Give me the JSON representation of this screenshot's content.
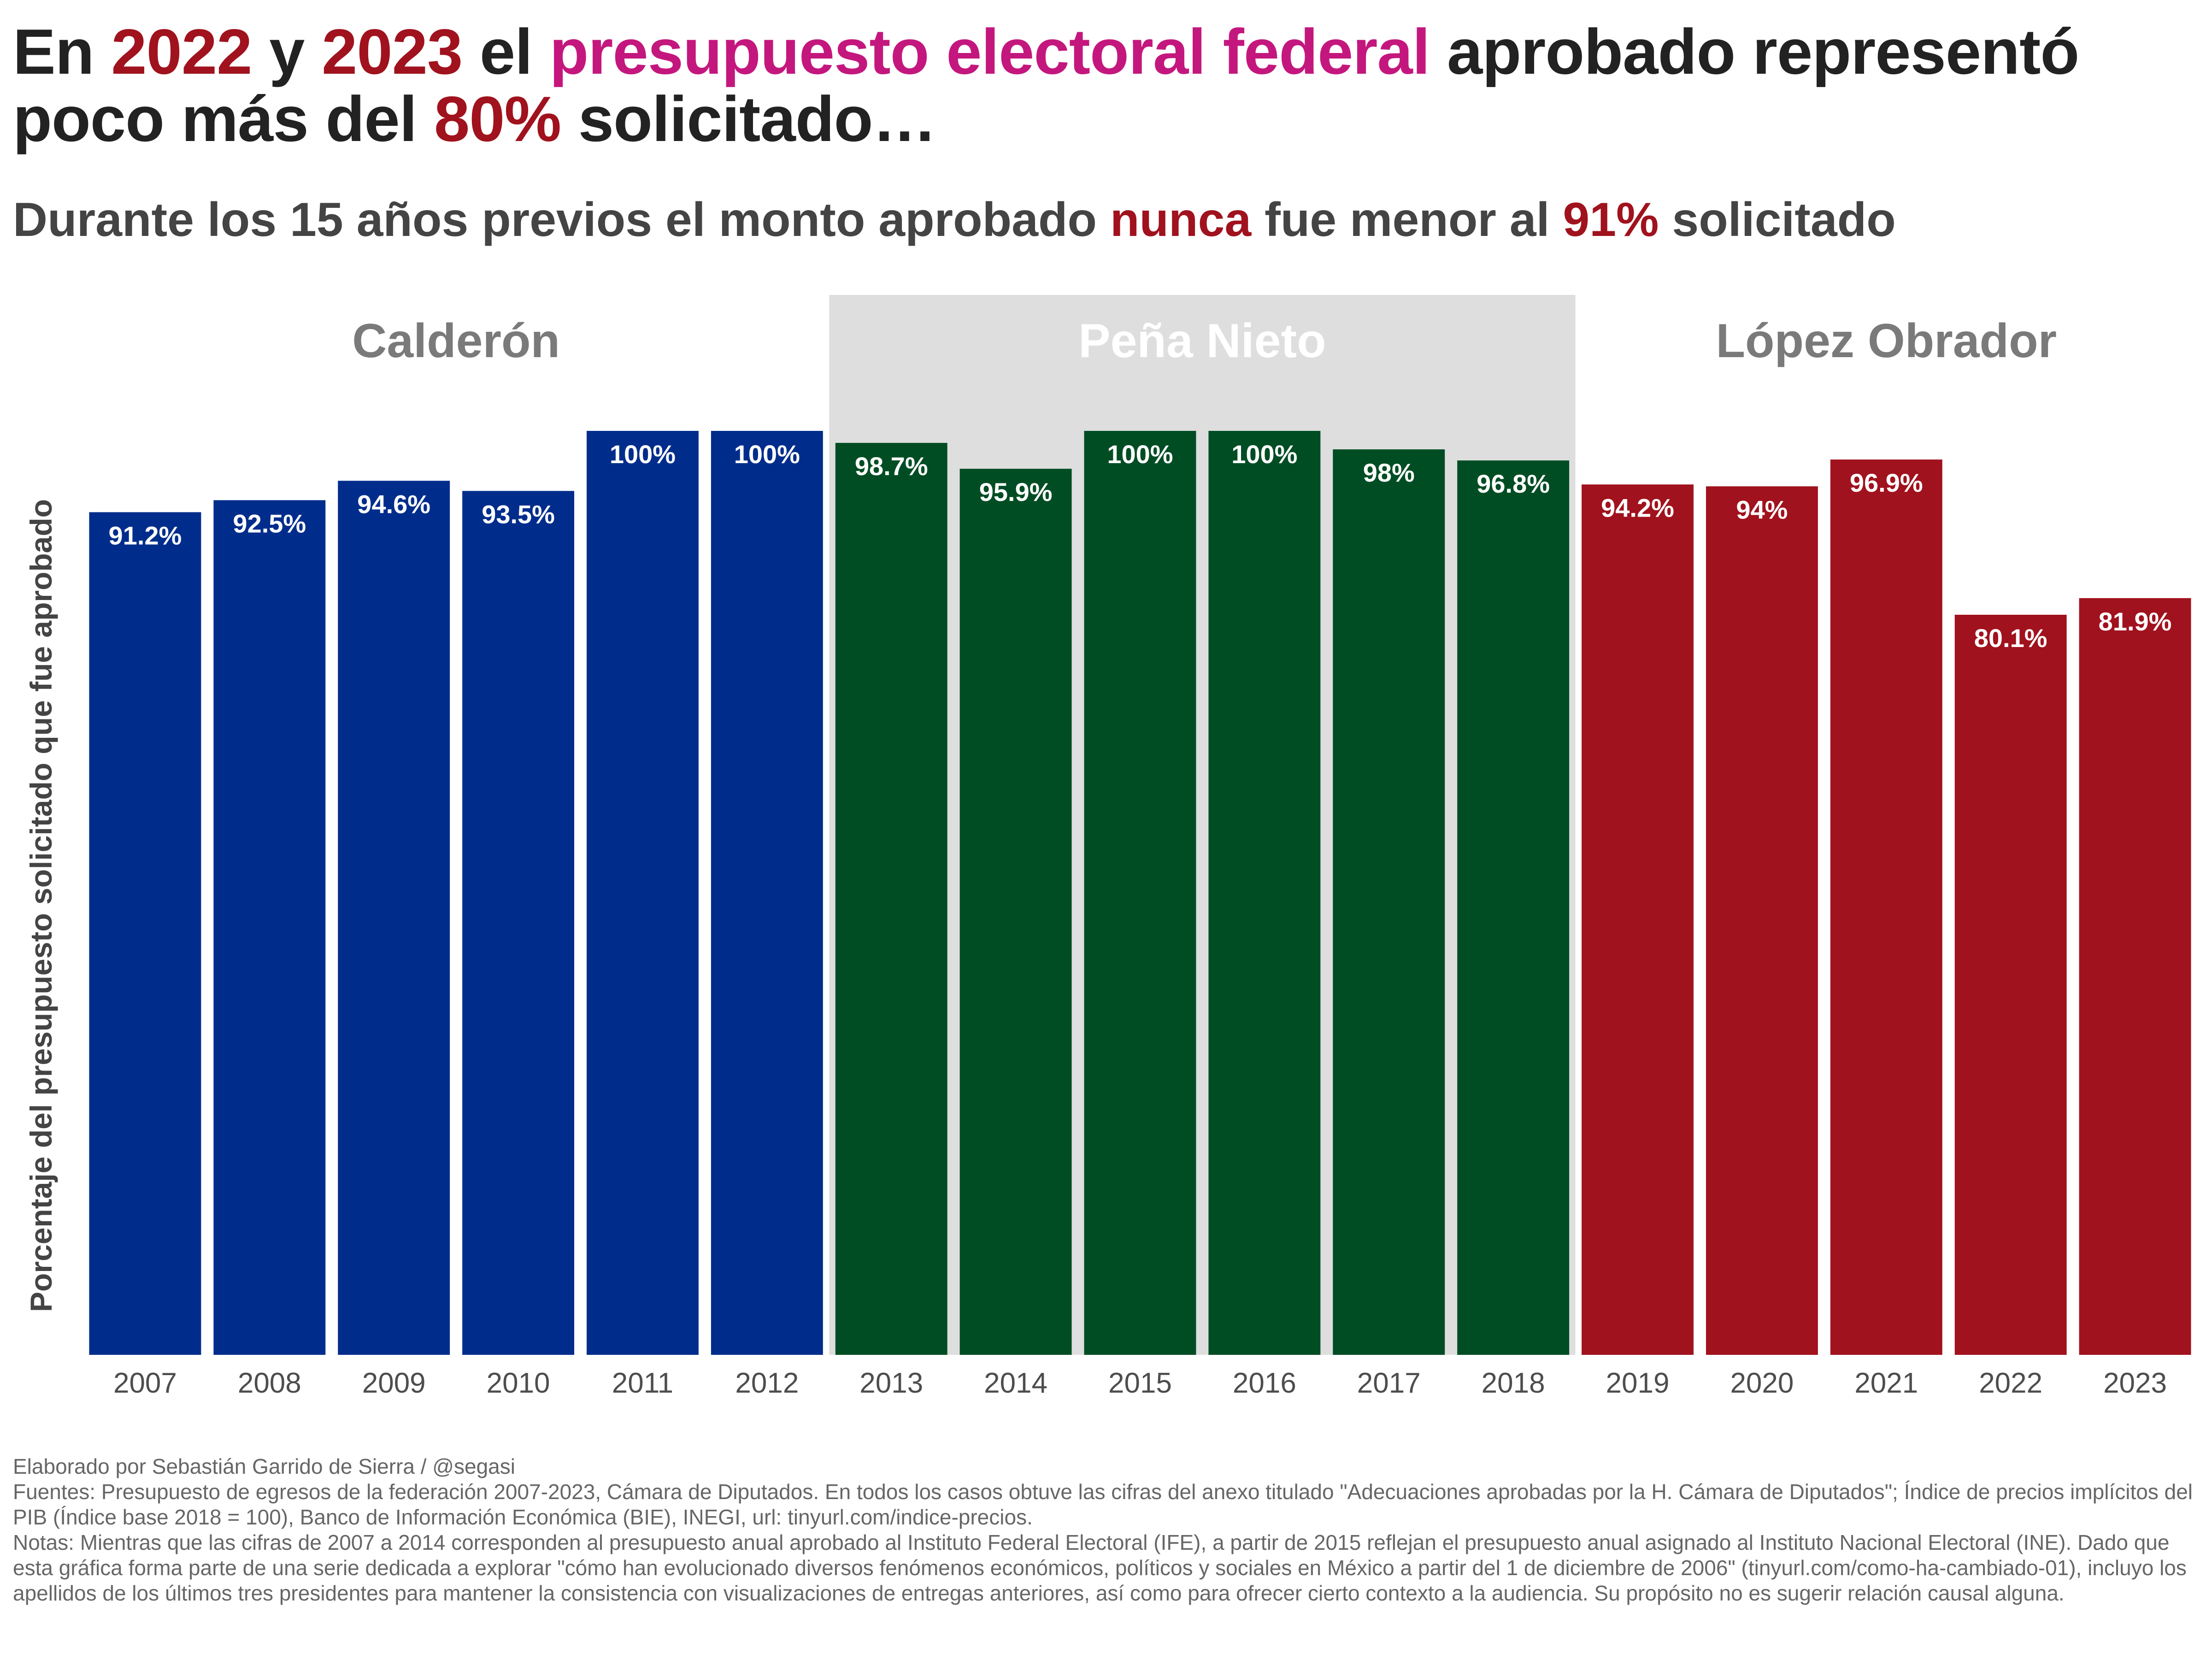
{
  "title": {
    "parts": [
      {
        "text": "En ",
        "style": "plain"
      },
      {
        "text": "2022",
        "style": "red"
      },
      {
        "text": " y ",
        "style": "plain"
      },
      {
        "text": "2023",
        "style": "red"
      },
      {
        "text": " el ",
        "style": "plain"
      },
      {
        "text": "presupuesto electoral federal",
        "style": "magenta"
      },
      {
        "text": " aprobado representó poco más del ",
        "style": "plain"
      },
      {
        "text": "80%",
        "style": "red"
      },
      {
        "text": " solicitado…",
        "style": "plain"
      }
    ]
  },
  "subtitle": {
    "parts": [
      {
        "text": "Durante los 15 años previos el monto aprobado ",
        "style": "plain"
      },
      {
        "text": "nunca",
        "style": "red"
      },
      {
        "text": " fue menor al ",
        "style": "plain"
      },
      {
        "text": "91%",
        "style": "red"
      },
      {
        "text": " solicitado",
        "style": "plain"
      }
    ]
  },
  "colors": {
    "title_text": "#222222",
    "subtitle_text": "#444444",
    "highlight_red": "#a0121d",
    "highlight_magenta": "#c4177e",
    "period_band": "#dedede",
    "period_label": "#7a7a7a",
    "period_label_on_band": "#ffffff",
    "tick_label": "#4d4d4d",
    "footer_text": "#666666"
  },
  "chart_data": {
    "type": "bar",
    "ylabel": "Porcentaje del presupuesto solicitado que fue aprobado",
    "xlabel": "",
    "ylim": [
      0,
      100
    ],
    "grid": false,
    "legend": "none",
    "categories": [
      "2007",
      "2008",
      "2009",
      "2010",
      "2011",
      "2012",
      "2013",
      "2014",
      "2015",
      "2016",
      "2017",
      "2018",
      "2019",
      "2020",
      "2021",
      "2022",
      "2023"
    ],
    "values": [
      91.2,
      92.5,
      94.6,
      93.5,
      100,
      100,
      98.7,
      95.9,
      100,
      100,
      98,
      96.8,
      94.2,
      94,
      96.9,
      80.1,
      81.9
    ],
    "data_labels": [
      "91.2%",
      "92.5%",
      "94.6%",
      "93.5%",
      "100%",
      "100%",
      "98.7%",
      "95.9%",
      "100%",
      "100%",
      "98%",
      "96.8%",
      "94.2%",
      "94%",
      "96.9%",
      "80.1%",
      "81.9%"
    ],
    "bar_colors": [
      "#002d8c",
      "#002d8c",
      "#002d8c",
      "#002d8c",
      "#002d8c",
      "#002d8c",
      "#004d24",
      "#004d24",
      "#004d24",
      "#004d24",
      "#004d24",
      "#004d24",
      "#a0121d",
      "#a0121d",
      "#a0121d",
      "#a0121d",
      "#a0121d"
    ],
    "periods": [
      {
        "label": "Calderón",
        "from": "2007",
        "to": "2012",
        "shaded": false
      },
      {
        "label": "Peña Nieto",
        "from": "2013",
        "to": "2018",
        "shaded": true
      },
      {
        "label": "López Obrador",
        "from": "2019",
        "to": "2023",
        "shaded": false
      }
    ]
  },
  "footer": {
    "credit": "Elaborado por Sebastián Garrido de Sierra / @segasi",
    "sources": "Fuentes: Presupuesto de egresos de la federación 2007-2023, Cámara de Diputados. En todos los casos obtuve las cifras del anexo titulado \"Adecuaciones aprobadas por la H. Cámara de Diputados\"; Índice de precios implícitos del PIB (Índice base 2018 = 100), Banco de Información Económica (BIE), INEGI, url: tinyurl.com/indice-precios.",
    "notes": "Notas: Mientras que las cifras de 2007 a 2014 corresponden al presupuesto anual aprobado al Instituto Federal Electoral (IFE), a partir de 2015 reflejan el presupuesto anual asignado al Instituto Nacional Electoral (INE). Dado que esta gráfica forma parte de una serie dedicada a explorar \"cómo han evolucionado diversos fenómenos económicos, políticos y sociales en México a partir del 1 de diciembre de 2006\" (tinyurl.com/como-ha-cambiado-01), incluyo los apellidos de los últimos tres presidentes para mantener la consistencia con visualizaciones de entregas anteriores, así como para ofrecer cierto contexto a la audiencia. Su propósito no es sugerir relación causal alguna."
  }
}
